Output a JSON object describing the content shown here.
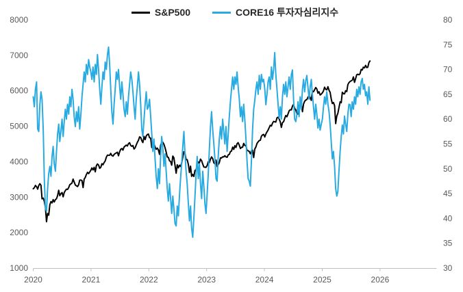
{
  "chart_data": {
    "type": "line",
    "title": "",
    "gridlines": false,
    "legend_position": "top-center",
    "background": "#ffffff",
    "axis_label_color": "#595959",
    "axis_line_color": "#BFBFBF",
    "x_axis": {
      "tick_labels": [
        "2020",
        "2021",
        "2022",
        "2023",
        "2024",
        "2025",
        "2026"
      ],
      "start_year": 2020,
      "point_interval_days": 7
    },
    "y_left": {
      "min": 1000,
      "max": 8000,
      "tick_step": 1000,
      "tick_labels": [
        "1000",
        "2000",
        "3000",
        "4000",
        "5000",
        "6000",
        "7000",
        "8000"
      ]
    },
    "y_right": {
      "min": 30,
      "max": 80,
      "tick_step": 5,
      "tick_labels": [
        "30",
        "35",
        "40",
        "45",
        "50",
        "55",
        "60",
        "65",
        "70",
        "75",
        "80"
      ]
    },
    "series": [
      {
        "name": "S&P500",
        "axis": "left",
        "color": "#000000",
        "values": [
          3235,
          3265,
          3330,
          3295,
          3225,
          3328,
          3380,
          3338,
          2954,
          2972,
          2882,
          2711,
          2305,
          2541,
          2490,
          2790,
          2875,
          2837,
          2930,
          2864,
          2930,
          2955,
          3044,
          3194,
          3041,
          3097,
          3130,
          3009,
          3130,
          3185,
          3225,
          3216,
          3271,
          3351,
          3373,
          3397,
          3508,
          3427,
          3341,
          3319,
          3298,
          3349,
          3477,
          3484,
          3466,
          3270,
          3509,
          3557,
          3638,
          3699,
          3663,
          3709,
          3756,
          3824,
          3768,
          3841,
          3714,
          3887,
          3935,
          3907,
          3811,
          3842,
          3943,
          3913,
          3975,
          4020,
          4129,
          4185,
          4180,
          4181,
          4233,
          4174,
          4156,
          4204,
          4230,
          4247,
          4266,
          4166,
          4281,
          4352,
          4370,
          4327,
          4412,
          4442,
          4468,
          4442,
          4510,
          4535,
          4459,
          4433,
          4455,
          4357,
          4391,
          4471,
          4545,
          4605,
          4698,
          4683,
          4595,
          4538,
          4712,
          4621,
          4726,
          4766,
          4778,
          4677,
          4663,
          4398,
          4432,
          4501,
          4419,
          4349,
          4385,
          4329,
          4204,
          4463,
          4543,
          4546,
          4488,
          4393,
          4272,
          4131,
          4123,
          4024,
          4004,
          3901,
          4158,
          4109,
          3901,
          3675,
          3912,
          3825,
          3900,
          3863,
          3962,
          4130,
          4280,
          4228,
          4058,
          4057,
          3924,
          3693,
          3873,
          3586,
          3640,
          3584,
          3753,
          3770,
          3902,
          3993,
          3965,
          4072,
          4026,
          3934,
          3852,
          3845,
          3840,
          3895,
          3999,
          3973,
          4071,
          4136,
          4090,
          3970,
          3940,
          4045,
          3862,
          3917,
          3971,
          4109,
          4105,
          4138,
          4134,
          4169,
          4136,
          4124,
          4192,
          4206,
          4282,
          4299,
          4410,
          4348,
          4450,
          4399,
          4505,
          4537,
          4464,
          4370,
          4405,
          4406,
          4516,
          4458,
          4450,
          4320,
          4309,
          4288,
          4224,
          4308,
          4327,
          4117,
          4358,
          4415,
          4514,
          4559,
          4595,
          4604,
          4719,
          4755,
          4770,
          4697,
          4784,
          4840,
          4891,
          4959,
          5027,
          5006,
          5089,
          5137,
          5124,
          5117,
          5234,
          5254,
          5204,
          5123,
          4967,
          5100,
          5128,
          5223,
          5303,
          5267,
          5346,
          5431,
          5464,
          5460,
          5567,
          5615,
          5505,
          5459,
          5346,
          5344,
          5554,
          5617,
          5648,
          5408,
          5626,
          5703,
          5738,
          5751,
          5815,
          5865,
          5808,
          5729,
          5995,
          5971,
          6032,
          6090,
          6051,
          5931,
          5971,
          5881,
          5906,
          5942,
          5996,
          6101,
          6041,
          6026,
          6115,
          6013,
          5955,
          5770,
          5639,
          5668,
          5581,
          5074,
          5283,
          5363,
          5525,
          5687,
          5660,
          5958,
          5917,
          5912,
          6000,
          5977,
          6173,
          6230,
          6260,
          6280,
          6297,
          6389,
          6238,
          6340,
          6449,
          6466,
          6450,
          6481,
          6602,
          6584,
          6664,
          6644,
          6715,
          6654,
          6664,
          6792,
          6840
        ]
      },
      {
        "name": "CORE16 투자자심리지수",
        "axis": "right",
        "color": "#29ABE2",
        "values": [
          64.5,
          62.5,
          66,
          67.5,
          58,
          57.5,
          63,
          65.5,
          64,
          58,
          48,
          42,
          41.5,
          46,
          49,
          50.5,
          48.5,
          52.5,
          54.5,
          51,
          49.5,
          53.5,
          57,
          59,
          55.5,
          57.5,
          60,
          56.5,
          59.5,
          62,
          60,
          63,
          61,
          64.5,
          62.5,
          66,
          64,
          60.5,
          58.5,
          61.5,
          59.5,
          62.5,
          58,
          61,
          64.5,
          67,
          69.5,
          67.5,
          71,
          69,
          72,
          70.5,
          69.5,
          68,
          70.5,
          67.5,
          71,
          69,
          73,
          70,
          66,
          63,
          66.5,
          69.5,
          68,
          71.5,
          70,
          73,
          74.5,
          71,
          66,
          61.5,
          59,
          63,
          66,
          69.5,
          68,
          70,
          66.5,
          64,
          67.5,
          65,
          62,
          60.5,
          63.5,
          61,
          64.5,
          67,
          69.5,
          68,
          65.5,
          62.5,
          60,
          64,
          66.5,
          69.5,
          67,
          63,
          58,
          56.5,
          60,
          63,
          65.5,
          62,
          62.5,
          64,
          60.5,
          57,
          53.5,
          56,
          52,
          48.5,
          46,
          50,
          47,
          52.5,
          56.5,
          54,
          50.5,
          53,
          49.5,
          46,
          43.5,
          47,
          44,
          41,
          44.5,
          42,
          39,
          38.5,
          42.5,
          40.5,
          44.5,
          48,
          51,
          54.5,
          57.5,
          53,
          49.5,
          47,
          43,
          39.5,
          42.5,
          38,
          36.2,
          40,
          44.5,
          49,
          52.5,
          48,
          51,
          47,
          44,
          49.5,
          46.5,
          43,
          41,
          45,
          49,
          54,
          58.5,
          61.5,
          58,
          55,
          52,
          48,
          47.5,
          52.5,
          56,
          58.5,
          56,
          60,
          57.5,
          55,
          58.5,
          53.5,
          57,
          60.5,
          63.5,
          66,
          68.5,
          66,
          68.5,
          67,
          69.5,
          66.5,
          64,
          60.5,
          62.5,
          59.5,
          63,
          60,
          56,
          51.5,
          48,
          47.5,
          46.5,
          52,
          58,
          62,
          63.8,
          66,
          67.5,
          65,
          68.8,
          66,
          69,
          67.5,
          68,
          66,
          62.9,
          65,
          67.5,
          68.5,
          66,
          70.5,
          68,
          70,
          73.4,
          69,
          66,
          63,
          60.2,
          62.5,
          60,
          64.5,
          67,
          65,
          67.5,
          64.5,
          66.5,
          68.5,
          66,
          69,
          69.9,
          64,
          60,
          59.5,
          61,
          63.5,
          60.5,
          64.5,
          62,
          66,
          68,
          65.5,
          67.7,
          68.8,
          66.5,
          64,
          66.5,
          68,
          65,
          62.5,
          60,
          63,
          61,
          58.2,
          60,
          57.8,
          59,
          60,
          62.5,
          64.5,
          63,
          65.5,
          63,
          61.5,
          59,
          55.5,
          52,
          53.5,
          50.5,
          46,
          44.5,
          45.4,
          49.5,
          53.5,
          56.5,
          58.8,
          57,
          60.6,
          59,
          57.5,
          61,
          63,
          62.9,
          60.5,
          63.5,
          62,
          64.5,
          63,
          66,
          64.5,
          66.5,
          65,
          67.5,
          68.2,
          66,
          67,
          64.7,
          65.5,
          63,
          66.5,
          63.8
        ]
      }
    ]
  }
}
